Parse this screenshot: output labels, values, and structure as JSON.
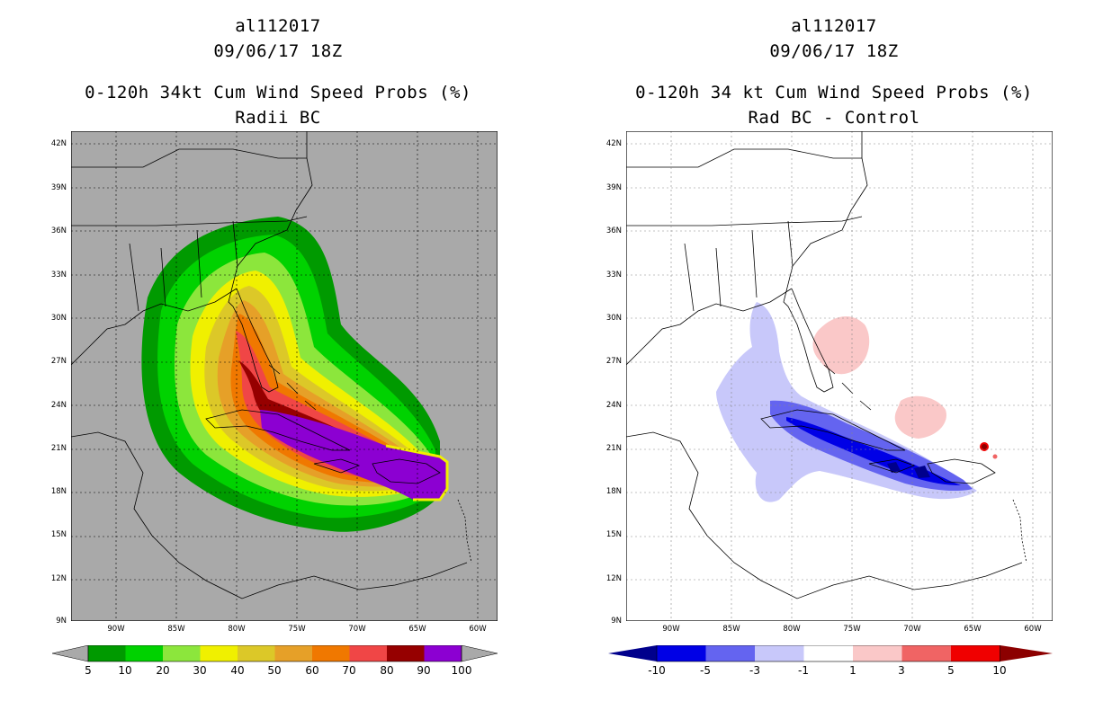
{
  "left_panel": {
    "storm_id": "al112017",
    "datetime": "09/06/17 18Z",
    "title": "0-120h 34kt Cum Wind Speed Probs (%)",
    "subtitle": "Radii BC",
    "background": "#a9a9a9",
    "colorbar": {
      "labels": [
        "5",
        "10",
        "20",
        "30",
        "40",
        "50",
        "60",
        "70",
        "80",
        "90",
        "100"
      ],
      "colors": [
        "#009a00",
        "#00d200",
        "#8ce63c",
        "#f0f000",
        "#dcc828",
        "#e6a028",
        "#f07800",
        "#f04646",
        "#960000",
        "#8c00d2"
      ]
    }
  },
  "right_panel": {
    "storm_id": "al112017",
    "datetime": "09/06/17 18Z",
    "title": "0-120h 34 kt Cum Wind Speed Probs (%)",
    "subtitle": "Rad BC - Control",
    "background": "#ffffff",
    "colorbar": {
      "labels": [
        "-10",
        "-5",
        "-3",
        "-1",
        "1",
        "3",
        "5",
        "10"
      ],
      "colors": [
        "#00008c",
        "#0000e6",
        "#6464f0",
        "#c8c8fa",
        "#ffffff",
        "#fac8c8",
        "#f06464",
        "#f00000",
        "#8c0000"
      ]
    }
  },
  "axes": {
    "lat_labels": [
      "42N",
      "39N",
      "36N",
      "33N",
      "30N",
      "27N",
      "24N",
      "21N",
      "18N",
      "15N",
      "12N",
      "9N"
    ],
    "lon_labels": [
      "90W",
      "85W",
      "80W",
      "75W",
      "70W",
      "65W",
      "60W"
    ]
  }
}
